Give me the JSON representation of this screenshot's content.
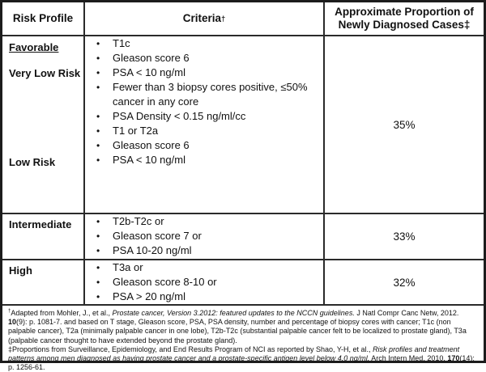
{
  "table": {
    "headers": {
      "risk_profile": "Risk Profile",
      "criteria": "Criteria",
      "criteria_sup": "†",
      "proportion": "Approximate Proportion of Newly Diagnosed Cases‡"
    },
    "favorable": {
      "group_label": "Favorable",
      "very_low": {
        "label": "Very Low Risk",
        "criteria": [
          "T1c",
          "Gleason score 6",
          "PSA < 10 ng/ml",
          "Fewer than 3 biopsy cores positive, ≤50% cancer in any core",
          "PSA Density < 0.15 ng/ml/cc"
        ]
      },
      "low": {
        "label": "Low Risk",
        "criteria": [
          "T1 or T2a",
          "Gleason score 6",
          "PSA < 10 ng/ml"
        ]
      },
      "proportion": "35%"
    },
    "intermediate": {
      "label": "Intermediate",
      "criteria": [
        "T2b-T2c or",
        "Gleason score 7 or",
        "PSA 10-20 ng/ml"
      ],
      "proportion": "33%"
    },
    "high": {
      "label": "High",
      "criteria": [
        "T3a or",
        "Gleason score 8-10 or",
        "PSA > 20 ng/ml"
      ],
      "proportion": "32%"
    }
  },
  "footnotes": {
    "dagger": {
      "marker": "†",
      "segments": [
        "Adapted  from Mohler, J., et al., ",
        "Prostate cancer, Version 3.2012: featured updates to the NCCN guidelines.",
        " J Natl Compr Canc Netw, 2012. ",
        "10",
        "(9): p. 1081-7.  and based on T stage, Gleason score, PSA, PSA density, number and percentage of biopsy cores with cancer; T1c (non palpable cancer), T2a (minimally palpable cancer in one lobe), T2b-T2c (substantial palpable cancer felt to be localized to prostate gland), T3a (palpable cancer thought to have extended beyond the prostate gland)."
      ]
    },
    "double_dagger": {
      "segments": [
        "‡Proportions from Surveillance, Epidemiology, and End Results Program of NCI as reported by Shao, Y-H, et al., ",
        "Risk profiles and treatment patterns among men diagnosed as having prostate cancer and a prostate-specific antigen level below 4.0 ng/ml.",
        " Arch Intern Med, 2010. ",
        "170",
        "(14): p. 1256-61."
      ]
    }
  }
}
